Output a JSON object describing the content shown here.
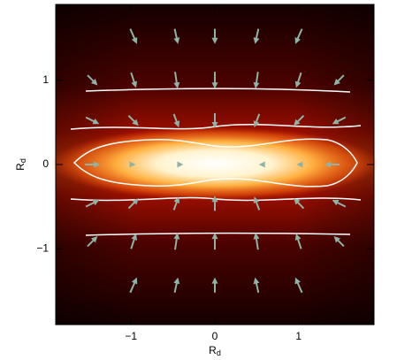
{
  "chart_data": {
    "type": "vector_field",
    "x_label": "R",
    "x_label_subscript": "d",
    "y_label": "R",
    "y_label_subscript": "d",
    "xlim": [
      -1.9,
      1.9
    ],
    "ylim": [
      -1.9,
      1.9
    ],
    "xticks": [
      {
        "value": -1,
        "label": "−1"
      },
      0,
      1
    ],
    "yticks": [
      {
        "value": -1,
        "label": "−1"
      },
      0,
      1
    ],
    "color": "#8fb3a6",
    "x": [
      -0.97,
      -0.46,
      0,
      0.5,
      1.0,
      -1.46,
      -0.97,
      -0.46,
      0,
      0.5,
      1.0,
      1.48,
      -1.46,
      -0.97,
      -0.46,
      0,
      0.5,
      1.0,
      1.48,
      -1.46,
      -0.97,
      -0.4,
      0.55,
      1.0,
      1.4,
      -1.46,
      -0.97,
      -0.46,
      0,
      0.5,
      1.0,
      1.48,
      -1.46,
      -0.97,
      -0.46,
      0,
      0.5,
      1.0,
      1.48,
      -0.97,
      -0.46,
      0,
      0.5,
      1.0
    ],
    "y": [
      1.52,
      1.52,
      1.52,
      1.52,
      1.52,
      1.0,
      1.0,
      1.0,
      1.0,
      1.0,
      1.0,
      1.0,
      0.52,
      0.52,
      0.52,
      0.52,
      0.52,
      0.52,
      0.52,
      0,
      0,
      0,
      0,
      0,
      0,
      -0.46,
      -0.46,
      -0.46,
      -0.46,
      -0.46,
      -0.46,
      -0.46,
      -0.91,
      -0.91,
      -0.91,
      -0.91,
      -0.91,
      -0.91,
      -0.91,
      -1.43,
      -1.43,
      -1.43,
      -1.43,
      -1.43
    ],
    "u": [
      0.08,
      0.04,
      0,
      -0.04,
      -0.08,
      0.12,
      0.06,
      0.03,
      0,
      -0.03,
      -0.06,
      -0.12,
      0.16,
      0.12,
      0.06,
      0,
      -0.06,
      -0.12,
      -0.16,
      0.18,
      0.05,
      0.05,
      -0.05,
      -0.05,
      -0.18,
      0.16,
      0.12,
      0.06,
      0,
      -0.06,
      -0.12,
      -0.16,
      0.12,
      0.06,
      0.03,
      0,
      -0.03,
      -0.06,
      -0.12,
      0.08,
      0.04,
      0,
      -0.04,
      -0.08
    ],
    "v": [
      -0.18,
      -0.18,
      -0.18,
      -0.18,
      -0.18,
      -0.12,
      -0.18,
      -0.2,
      -0.2,
      -0.2,
      -0.18,
      -0.12,
      -0.08,
      -0.12,
      -0.16,
      -0.18,
      -0.16,
      -0.12,
      -0.08,
      0,
      0,
      0,
      0,
      0,
      0,
      0.08,
      0.12,
      0.16,
      0.18,
      0.16,
      0.12,
      0.08,
      0.12,
      0.18,
      0.2,
      0.2,
      0.2,
      0.18,
      0.12,
      0.18,
      0.18,
      0.18,
      0.18,
      0.18
    ]
  }
}
